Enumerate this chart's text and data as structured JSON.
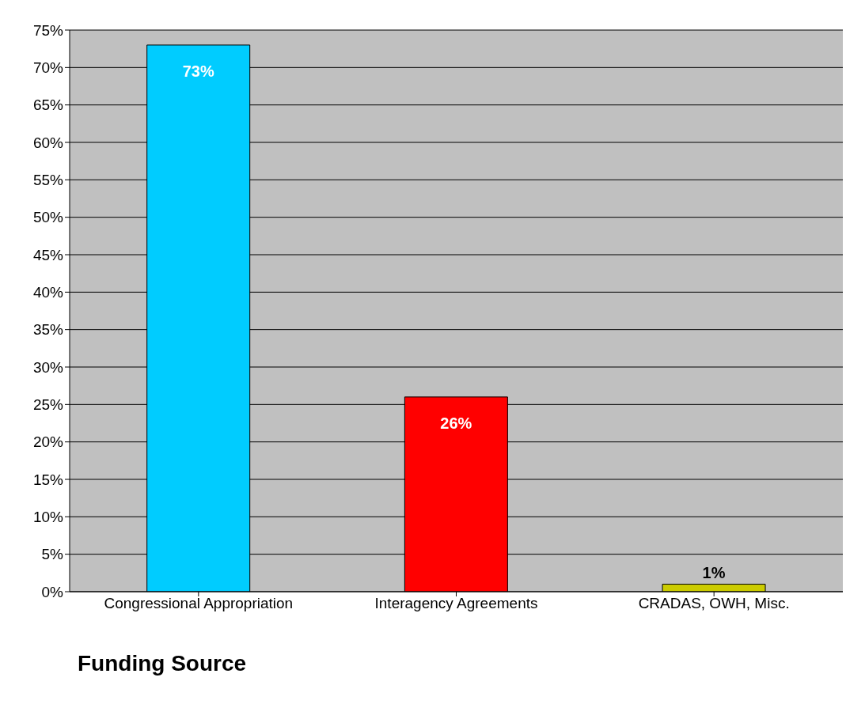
{
  "chart_data": {
    "type": "bar",
    "xlabel": "Funding Source",
    "categories": [
      "Congressional Appropriation",
      "Interagency Agreements",
      "CRADAS, OWH, Misc."
    ],
    "values": [
      73,
      26,
      1
    ],
    "colors": [
      "#00ccff",
      "#ff0000",
      "#cccc00"
    ],
    "value_labels": [
      "73%",
      "26%",
      "1%"
    ],
    "ylim": [
      0,
      75
    ],
    "yticks": [
      {
        "value": 0,
        "label": "0%"
      },
      {
        "value": 5,
        "label": "5%"
      },
      {
        "value": 10,
        "label": "10%"
      },
      {
        "value": 15,
        "label": "15%"
      },
      {
        "value": 20,
        "label": "20%"
      },
      {
        "value": 25,
        "label": "25%"
      },
      {
        "value": 30,
        "label": "30%"
      },
      {
        "value": 35,
        "label": "35%"
      },
      {
        "value": 40,
        "label": "40%"
      },
      {
        "value": 45,
        "label": "45%"
      },
      {
        "value": 50,
        "label": "50%"
      },
      {
        "value": 55,
        "label": "55%"
      },
      {
        "value": 60,
        "label": "60%"
      },
      {
        "value": 65,
        "label": "65%"
      },
      {
        "value": 70,
        "label": "70%"
      },
      {
        "value": 75,
        "label": "75%"
      }
    ],
    "grid": "y",
    "legend": false
  }
}
